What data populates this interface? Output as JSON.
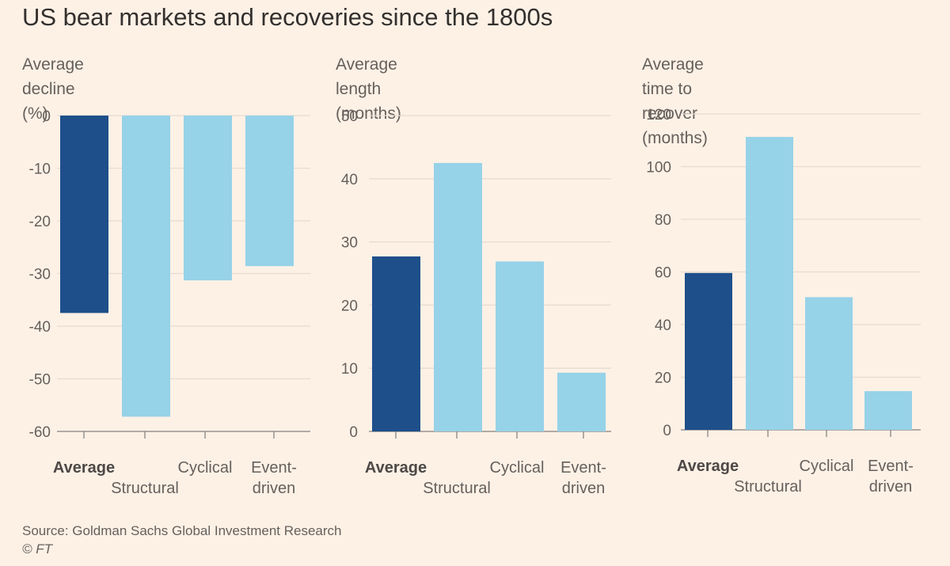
{
  "title": "US bear markets and recoveries since the 1800s",
  "source": "Source: Goldman Sachs Global Investment Research",
  "copyright": "© FT",
  "colors": {
    "highlight": "#1e4f8a",
    "bar": "#96d2e8",
    "grid": "#e6dbd1",
    "background": "#fdf1e6"
  },
  "chart_data": [
    {
      "type": "bar",
      "title": "Average decline (%)",
      "categories": [
        "Average",
        "Structural",
        "Cyclical",
        "Event-driven"
      ],
      "category_lines": [
        [
          "Average"
        ],
        [
          "Structural"
        ],
        [
          "Cyclical"
        ],
        [
          "Event-",
          "driven"
        ]
      ],
      "values": [
        -37.5,
        -57.2,
        -31.3,
        -28.6
      ],
      "ylim": [
        -60,
        0
      ],
      "yticks": [
        0,
        -10,
        -20,
        -30,
        -40,
        -50,
        -60
      ],
      "highlight_index": 0
    },
    {
      "type": "bar",
      "title": "Average length (months)",
      "categories": [
        "Average",
        "Structural",
        "Cyclical",
        "Event-driven"
      ],
      "category_lines": [
        [
          "Average"
        ],
        [
          "Structural"
        ],
        [
          "Cyclical"
        ],
        [
          "Event-",
          "driven"
        ]
      ],
      "values": [
        27.7,
        42.5,
        26.9,
        9.3
      ],
      "ylim": [
        0,
        50
      ],
      "yticks": [
        50,
        40,
        30,
        20,
        10,
        0
      ],
      "highlight_index": 0
    },
    {
      "type": "bar",
      "title": "Average time to recover (months)",
      "title_lines": [
        "Average time to recover",
        "(months)"
      ],
      "categories": [
        "Average",
        "Structural",
        "Cyclical",
        "Event-driven"
      ],
      "category_lines": [
        [
          "Average"
        ],
        [
          "Structural"
        ],
        [
          "Cyclical"
        ],
        [
          "Event-",
          "driven"
        ]
      ],
      "values": [
        59.6,
        111.3,
        50.4,
        14.7
      ],
      "ylim": [
        0,
        120
      ],
      "yticks": [
        120,
        100,
        80,
        60,
        40,
        20,
        0
      ],
      "highlight_index": 0
    }
  ]
}
